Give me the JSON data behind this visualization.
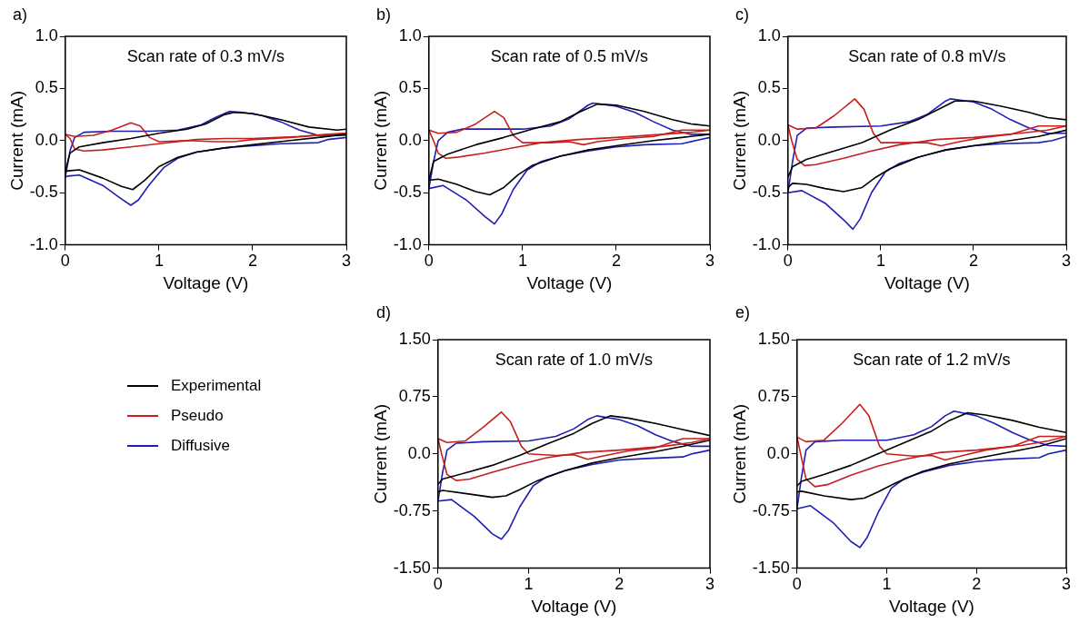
{
  "chart_data": [
    {
      "type": "line",
      "title": "Scan rate of 0.3 mV/s",
      "xlabel": "Voltage (V)",
      "ylabel": "Current (mA)",
      "annotations": [
        "a)"
      ],
      "legend": "bottom",
      "xlim": [
        0,
        3
      ],
      "xticks": [
        0,
        1,
        2,
        3
      ],
      "ylim": [
        -1,
        1
      ],
      "yticks": [
        {
          "value": -1,
          "label": "-1.0"
        },
        {
          "value": -0.5,
          "label": "-0.5"
        },
        {
          "value": 0,
          "label": "0.0"
        },
        {
          "value": 0.5,
          "label": "0.5"
        },
        {
          "value": 1,
          "label": "1.0"
        }
      ],
      "series": [
        {
          "name": "Experimental",
          "color": "#000000",
          "x": [
            0,
            0.05,
            0.15,
            0.4,
            0.7,
            1.0,
            1.3,
            1.5,
            1.7,
            1.8,
            2.0,
            2.3,
            2.6,
            2.9,
            3.0
          ],
          "values": [
            -0.3,
            -0.12,
            -0.06,
            -0.02,
            0.02,
            0.07,
            0.11,
            0.16,
            0.25,
            0.27,
            0.26,
            0.2,
            0.13,
            0.1,
            0.11
          ]
        },
        {
          "color": "#000000",
          "x": [
            3.0,
            2.7,
            2.4,
            2.0,
            1.7,
            1.4,
            1.2,
            1.0,
            0.85,
            0.72,
            0.6,
            0.4,
            0.15,
            0.03,
            0
          ],
          "values": [
            0.06,
            0.03,
            0.0,
            -0.04,
            -0.07,
            -0.11,
            -0.16,
            -0.25,
            -0.38,
            -0.47,
            -0.44,
            -0.36,
            -0.28,
            -0.29,
            -0.3
          ]
        },
        {
          "name": "Pseudo",
          "color": "#c81e1e",
          "x": [
            0,
            0.1,
            0.3,
            0.5,
            0.7,
            0.8,
            0.9,
            1.0,
            1.3,
            1.6,
            1.8,
            2.0,
            2.4,
            2.7,
            3.0
          ],
          "values": [
            0.06,
            0.04,
            0.05,
            0.1,
            0.17,
            0.14,
            0.03,
            -0.01,
            0.0,
            -0.01,
            -0.01,
            0.01,
            0.03,
            0.05,
            0.07
          ]
        },
        {
          "color": "#c81e1e",
          "x": [
            3.0,
            2.8,
            2.5,
            2.0,
            1.7,
            1.4,
            1.0,
            0.7,
            0.4,
            0.2,
            0.1,
            0.05,
            0
          ],
          "values": [
            0.07,
            0.06,
            0.04,
            0.02,
            0.02,
            0.01,
            -0.03,
            -0.06,
            -0.09,
            -0.1,
            -0.08,
            0.02,
            0.06
          ]
        },
        {
          "name": "Diffusive",
          "color": "#1e1eb4",
          "x": [
            0,
            0.05,
            0.1,
            0.2,
            0.5,
            0.9,
            1.2,
            1.45,
            1.6,
            1.75,
            1.9,
            2.1,
            2.3,
            2.5,
            2.7,
            3.0
          ],
          "values": [
            -0.35,
            -0.1,
            0.03,
            0.08,
            0.09,
            0.09,
            0.1,
            0.15,
            0.22,
            0.28,
            0.27,
            0.24,
            0.18,
            0.1,
            0.05,
            0.05
          ]
        },
        {
          "color": "#1e1eb4",
          "x": [
            3.0,
            2.8,
            2.7,
            2.3,
            2.0,
            1.7,
            1.4,
            1.2,
            1.05,
            0.9,
            0.78,
            0.7,
            0.6,
            0.4,
            0.15,
            0.03,
            0
          ],
          "values": [
            0.03,
            0.01,
            -0.02,
            -0.03,
            -0.05,
            -0.07,
            -0.11,
            -0.17,
            -0.26,
            -0.42,
            -0.57,
            -0.62,
            -0.56,
            -0.43,
            -0.33,
            -0.34,
            -0.35
          ]
        }
      ]
    },
    {
      "type": "line",
      "title": "Scan rate of 0.5 mV/s",
      "xlabel": "Voltage (V)",
      "ylabel": "Current (mA)",
      "annotations": [
        "b)"
      ],
      "xlim": [
        0,
        3
      ],
      "xticks": [
        0,
        1,
        2,
        3
      ],
      "ylim": [
        -1,
        1
      ],
      "yticks": [
        {
          "value": -1,
          "label": "-1.0"
        },
        {
          "value": -0.5,
          "label": "-0.5"
        },
        {
          "value": 0,
          "label": "0.0"
        },
        {
          "value": 0.5,
          "label": "0.5"
        },
        {
          "value": 1,
          "label": "1.0"
        }
      ],
      "series": [
        {
          "color": "#000000",
          "x": [
            0,
            0.05,
            0.2,
            0.5,
            0.8,
            1.1,
            1.4,
            1.6,
            1.8,
            2.0,
            2.3,
            2.6,
            2.8,
            3.0
          ],
          "values": [
            -0.38,
            -0.2,
            -0.13,
            -0.04,
            0.03,
            0.11,
            0.18,
            0.27,
            0.35,
            0.34,
            0.28,
            0.2,
            0.16,
            0.14
          ]
        },
        {
          "color": "#000000",
          "x": [
            3.0,
            2.7,
            2.4,
            2.0,
            1.7,
            1.4,
            1.1,
            0.95,
            0.8,
            0.65,
            0.5,
            0.3,
            0.1,
            0
          ],
          "values": [
            0.06,
            0.03,
            0.0,
            -0.05,
            -0.09,
            -0.15,
            -0.24,
            -0.33,
            -0.45,
            -0.52,
            -0.49,
            -0.42,
            -0.37,
            -0.38
          ]
        },
        {
          "color": "#c81e1e",
          "x": [
            0,
            0.1,
            0.3,
            0.5,
            0.7,
            0.8,
            0.9,
            1.0,
            1.3,
            1.5,
            1.65,
            1.8,
            2.1,
            2.4,
            2.7,
            3.0
          ],
          "values": [
            0.1,
            0.07,
            0.08,
            0.16,
            0.28,
            0.22,
            0.05,
            -0.02,
            -0.02,
            -0.01,
            -0.04,
            -0.01,
            0.02,
            0.04,
            0.1,
            0.1
          ]
        },
        {
          "color": "#c81e1e",
          "x": [
            3.0,
            2.8,
            2.5,
            2.0,
            1.6,
            1.2,
            0.9,
            0.6,
            0.3,
            0.18,
            0.1,
            0.04,
            0
          ],
          "values": [
            0.1,
            0.08,
            0.06,
            0.03,
            0.01,
            -0.02,
            -0.07,
            -0.12,
            -0.16,
            -0.17,
            -0.12,
            0.02,
            0.1
          ]
        },
        {
          "color": "#1e1eb4",
          "x": [
            0,
            0.05,
            0.1,
            0.2,
            0.35,
            0.7,
            1.0,
            1.3,
            1.5,
            1.7,
            1.75,
            2.0,
            2.2,
            2.4,
            2.6,
            2.8,
            3.0
          ],
          "values": [
            -0.46,
            -0.2,
            0.0,
            0.08,
            0.11,
            0.11,
            0.11,
            0.14,
            0.21,
            0.34,
            0.36,
            0.33,
            0.27,
            0.18,
            0.1,
            0.06,
            0.06
          ]
        },
        {
          "color": "#1e1eb4",
          "x": [
            3.0,
            2.85,
            2.7,
            2.3,
            2.0,
            1.7,
            1.4,
            1.2,
            1.05,
            0.9,
            0.78,
            0.7,
            0.6,
            0.4,
            0.15,
            0
          ],
          "values": [
            0.03,
            0.0,
            -0.03,
            -0.04,
            -0.06,
            -0.1,
            -0.15,
            -0.2,
            -0.28,
            -0.47,
            -0.7,
            -0.8,
            -0.73,
            -0.57,
            -0.43,
            -0.46
          ]
        }
      ]
    },
    {
      "type": "line",
      "title": "Scan rate of 0.8 mV/s",
      "xlabel": "Voltage (V)",
      "ylabel": "Current (mA)",
      "annotations": [
        "c)"
      ],
      "xlim": [
        0,
        3
      ],
      "xticks": [
        0,
        1,
        2,
        3
      ],
      "ylim": [
        -1,
        1
      ],
      "yticks": [
        {
          "value": -1,
          "label": "-1.0"
        },
        {
          "value": -0.5,
          "label": "-0.5"
        },
        {
          "value": 0,
          "label": "0.0"
        },
        {
          "value": 0.5,
          "label": "0.5"
        },
        {
          "value": 1,
          "label": "1.0"
        }
      ],
      "series": [
        {
          "color": "#000000",
          "x": [
            0,
            0.05,
            0.2,
            0.5,
            0.8,
            1.1,
            1.4,
            1.6,
            1.8,
            2.0,
            2.3,
            2.6,
            2.8,
            3.0
          ],
          "values": [
            -0.35,
            -0.25,
            -0.18,
            -0.1,
            -0.02,
            0.1,
            0.2,
            0.29,
            0.38,
            0.38,
            0.33,
            0.27,
            0.22,
            0.2
          ]
        },
        {
          "color": "#000000",
          "x": [
            3.0,
            2.7,
            2.4,
            2.0,
            1.7,
            1.4,
            1.1,
            0.95,
            0.8,
            0.6,
            0.4,
            0.2,
            0.05,
            0
          ],
          "values": [
            0.1,
            0.04,
            0.0,
            -0.05,
            -0.09,
            -0.16,
            -0.27,
            -0.35,
            -0.45,
            -0.49,
            -0.46,
            -0.42,
            -0.41,
            -0.45
          ]
        },
        {
          "color": "#c81e1e",
          "x": [
            0,
            0.1,
            0.3,
            0.5,
            0.72,
            0.82,
            0.92,
            1.0,
            1.3,
            1.5,
            1.65,
            1.85,
            2.1,
            2.4,
            2.7,
            3.0
          ],
          "values": [
            0.15,
            0.11,
            0.12,
            0.24,
            0.4,
            0.3,
            0.07,
            -0.02,
            -0.02,
            -0.02,
            -0.05,
            -0.01,
            0.03,
            0.06,
            0.14,
            0.14
          ]
        },
        {
          "color": "#c81e1e",
          "x": [
            3.0,
            2.8,
            2.5,
            2.0,
            1.6,
            1.2,
            0.9,
            0.6,
            0.3,
            0.18,
            0.1,
            0.04,
            0
          ],
          "values": [
            0.14,
            0.1,
            0.07,
            0.03,
            0.01,
            -0.04,
            -0.1,
            -0.17,
            -0.23,
            -0.24,
            -0.18,
            0.0,
            0.15
          ]
        },
        {
          "color": "#1e1eb4",
          "x": [
            0,
            0.05,
            0.1,
            0.2,
            0.5,
            1.0,
            1.3,
            1.5,
            1.7,
            1.75,
            2.0,
            2.2,
            2.4,
            2.6,
            2.8,
            3.0
          ],
          "values": [
            -0.5,
            -0.2,
            0.05,
            0.12,
            0.13,
            0.14,
            0.18,
            0.25,
            0.38,
            0.4,
            0.37,
            0.3,
            0.2,
            0.12,
            0.07,
            0.07
          ]
        },
        {
          "color": "#1e1eb4",
          "x": [
            3.0,
            2.85,
            2.7,
            2.3,
            2.0,
            1.7,
            1.4,
            1.2,
            1.05,
            0.9,
            0.78,
            0.7,
            0.6,
            0.4,
            0.15,
            0
          ],
          "values": [
            0.04,
            0.0,
            -0.02,
            -0.03,
            -0.05,
            -0.09,
            -0.16,
            -0.22,
            -0.3,
            -0.5,
            -0.75,
            -0.85,
            -0.76,
            -0.6,
            -0.48,
            -0.5
          ]
        }
      ]
    },
    {
      "type": "line",
      "title": "Scan rate of 1.0 mV/s",
      "xlabel": "Voltage (V)",
      "ylabel": "Current (mA)",
      "annotations": [
        "d)"
      ],
      "xlim": [
        0,
        3
      ],
      "xticks": [
        0,
        1,
        2,
        3
      ],
      "ylim": [
        -1.5,
        1.5
      ],
      "yticks": [
        {
          "value": -1.5,
          "label": "-1.50"
        },
        {
          "value": -0.75,
          "label": "-0.75"
        },
        {
          "value": 0,
          "label": "0.0"
        },
        {
          "value": 0.75,
          "label": "0.75"
        },
        {
          "value": 1.5,
          "label": "1.50"
        }
      ],
      "series": [
        {
          "color": "#000000",
          "x": [
            0,
            0.05,
            0.3,
            0.6,
            0.9,
            1.2,
            1.5,
            1.7,
            1.9,
            2.1,
            2.4,
            2.7,
            3.0
          ],
          "values": [
            -0.4,
            -0.33,
            -0.25,
            -0.15,
            -0.02,
            0.13,
            0.27,
            0.4,
            0.5,
            0.47,
            0.4,
            0.32,
            0.24
          ]
        },
        {
          "color": "#000000",
          "x": [
            3.0,
            2.7,
            2.4,
            2.0,
            1.7,
            1.4,
            1.1,
            0.9,
            0.75,
            0.6,
            0.3,
            0.05,
            0
          ],
          "values": [
            0.18,
            0.1,
            0.03,
            -0.05,
            -0.12,
            -0.22,
            -0.35,
            -0.47,
            -0.55,
            -0.57,
            -0.52,
            -0.48,
            -0.5
          ]
        },
        {
          "color": "#c81e1e",
          "x": [
            0,
            0.1,
            0.3,
            0.5,
            0.7,
            0.8,
            0.92,
            1.0,
            1.3,
            1.5,
            1.65,
            1.85,
            2.1,
            2.4,
            2.7,
            3.0
          ],
          "values": [
            0.2,
            0.15,
            0.17,
            0.35,
            0.55,
            0.42,
            0.1,
            0.0,
            -0.02,
            -0.01,
            -0.07,
            -0.02,
            0.04,
            0.08,
            0.2,
            0.2
          ]
        },
        {
          "color": "#c81e1e",
          "x": [
            3.0,
            2.8,
            2.5,
            2.0,
            1.6,
            1.2,
            0.9,
            0.6,
            0.35,
            0.2,
            0.1,
            0.04,
            0
          ],
          "values": [
            0.2,
            0.15,
            0.1,
            0.05,
            0.02,
            -0.05,
            -0.14,
            -0.24,
            -0.33,
            -0.35,
            -0.27,
            0.0,
            0.2
          ]
        },
        {
          "color": "#1e1eb4",
          "x": [
            0,
            0.05,
            0.1,
            0.2,
            0.5,
            1.0,
            1.3,
            1.5,
            1.65,
            1.75,
            2.0,
            2.2,
            2.4,
            2.6,
            2.8,
            3.0
          ],
          "values": [
            -0.62,
            -0.25,
            0.05,
            0.14,
            0.16,
            0.17,
            0.23,
            0.33,
            0.45,
            0.5,
            0.45,
            0.37,
            0.25,
            0.16,
            0.1,
            0.1
          ]
        },
        {
          "color": "#1e1eb4",
          "x": [
            3.0,
            2.8,
            2.7,
            2.3,
            2.0,
            1.7,
            1.4,
            1.2,
            1.05,
            0.9,
            0.78,
            0.7,
            0.6,
            0.4,
            0.15,
            0
          ],
          "values": [
            0.05,
            0.0,
            -0.04,
            -0.06,
            -0.08,
            -0.14,
            -0.22,
            -0.3,
            -0.42,
            -0.7,
            -1.0,
            -1.12,
            -1.05,
            -0.82,
            -0.6,
            -0.62
          ]
        }
      ]
    },
    {
      "type": "line",
      "title": "Scan rate of 1.2 mV/s",
      "xlabel": "Voltage (V)",
      "ylabel": "Current (mA)",
      "annotations": [
        "e)"
      ],
      "xlim": [
        0,
        3
      ],
      "xticks": [
        0,
        1,
        2,
        3
      ],
      "ylim": [
        -1.5,
        1.5
      ],
      "yticks": [
        {
          "value": -1.5,
          "label": "-1.50"
        },
        {
          "value": -0.75,
          "label": "-0.75"
        },
        {
          "value": 0,
          "label": "0.0"
        },
        {
          "value": 0.75,
          "label": "0.75"
        },
        {
          "value": 1.5,
          "label": "1.50"
        }
      ],
      "series": [
        {
          "color": "#000000",
          "x": [
            0,
            0.05,
            0.3,
            0.6,
            0.9,
            1.2,
            1.5,
            1.7,
            1.9,
            2.1,
            2.4,
            2.7,
            3.0
          ],
          "values": [
            -0.42,
            -0.36,
            -0.27,
            -0.15,
            0.0,
            0.15,
            0.3,
            0.44,
            0.54,
            0.51,
            0.44,
            0.35,
            0.28
          ]
        },
        {
          "color": "#000000",
          "x": [
            3.0,
            2.7,
            2.4,
            2.0,
            1.7,
            1.4,
            1.1,
            0.9,
            0.75,
            0.6,
            0.3,
            0.05,
            0
          ],
          "values": [
            0.2,
            0.1,
            0.03,
            -0.06,
            -0.13,
            -0.23,
            -0.38,
            -0.5,
            -0.58,
            -0.6,
            -0.55,
            -0.49,
            -0.5
          ]
        },
        {
          "color": "#c81e1e",
          "x": [
            0,
            0.1,
            0.3,
            0.5,
            0.7,
            0.8,
            0.92,
            1.0,
            1.3,
            1.5,
            1.65,
            1.85,
            2.1,
            2.4,
            2.7,
            3.0
          ],
          "values": [
            0.22,
            0.16,
            0.18,
            0.4,
            0.65,
            0.5,
            0.1,
            0.0,
            -0.03,
            -0.02,
            -0.08,
            -0.02,
            0.05,
            0.1,
            0.23,
            0.23
          ]
        },
        {
          "color": "#c81e1e",
          "x": [
            3.0,
            2.8,
            2.5,
            2.0,
            1.6,
            1.2,
            0.9,
            0.6,
            0.35,
            0.2,
            0.1,
            0.04,
            0
          ],
          "values": [
            0.23,
            0.17,
            0.11,
            0.05,
            0.02,
            -0.07,
            -0.16,
            -0.28,
            -0.4,
            -0.43,
            -0.33,
            0.0,
            0.22
          ]
        },
        {
          "color": "#1e1eb4",
          "x": [
            0,
            0.05,
            0.1,
            0.2,
            0.5,
            1.0,
            1.3,
            1.5,
            1.65,
            1.75,
            2.0,
            2.2,
            2.4,
            2.6,
            2.8,
            3.0
          ],
          "values": [
            -0.72,
            -0.3,
            0.05,
            0.16,
            0.18,
            0.18,
            0.25,
            0.36,
            0.5,
            0.56,
            0.5,
            0.4,
            0.28,
            0.18,
            0.11,
            0.1
          ]
        },
        {
          "color": "#1e1eb4",
          "x": [
            3.0,
            2.8,
            2.7,
            2.3,
            2.0,
            1.7,
            1.4,
            1.2,
            1.05,
            0.9,
            0.78,
            0.7,
            0.6,
            0.4,
            0.15,
            0
          ],
          "values": [
            0.05,
            0.0,
            -0.05,
            -0.07,
            -0.1,
            -0.15,
            -0.24,
            -0.32,
            -0.45,
            -0.78,
            -1.1,
            -1.23,
            -1.15,
            -0.9,
            -0.68,
            -0.72
          ]
        }
      ]
    }
  ]
}
